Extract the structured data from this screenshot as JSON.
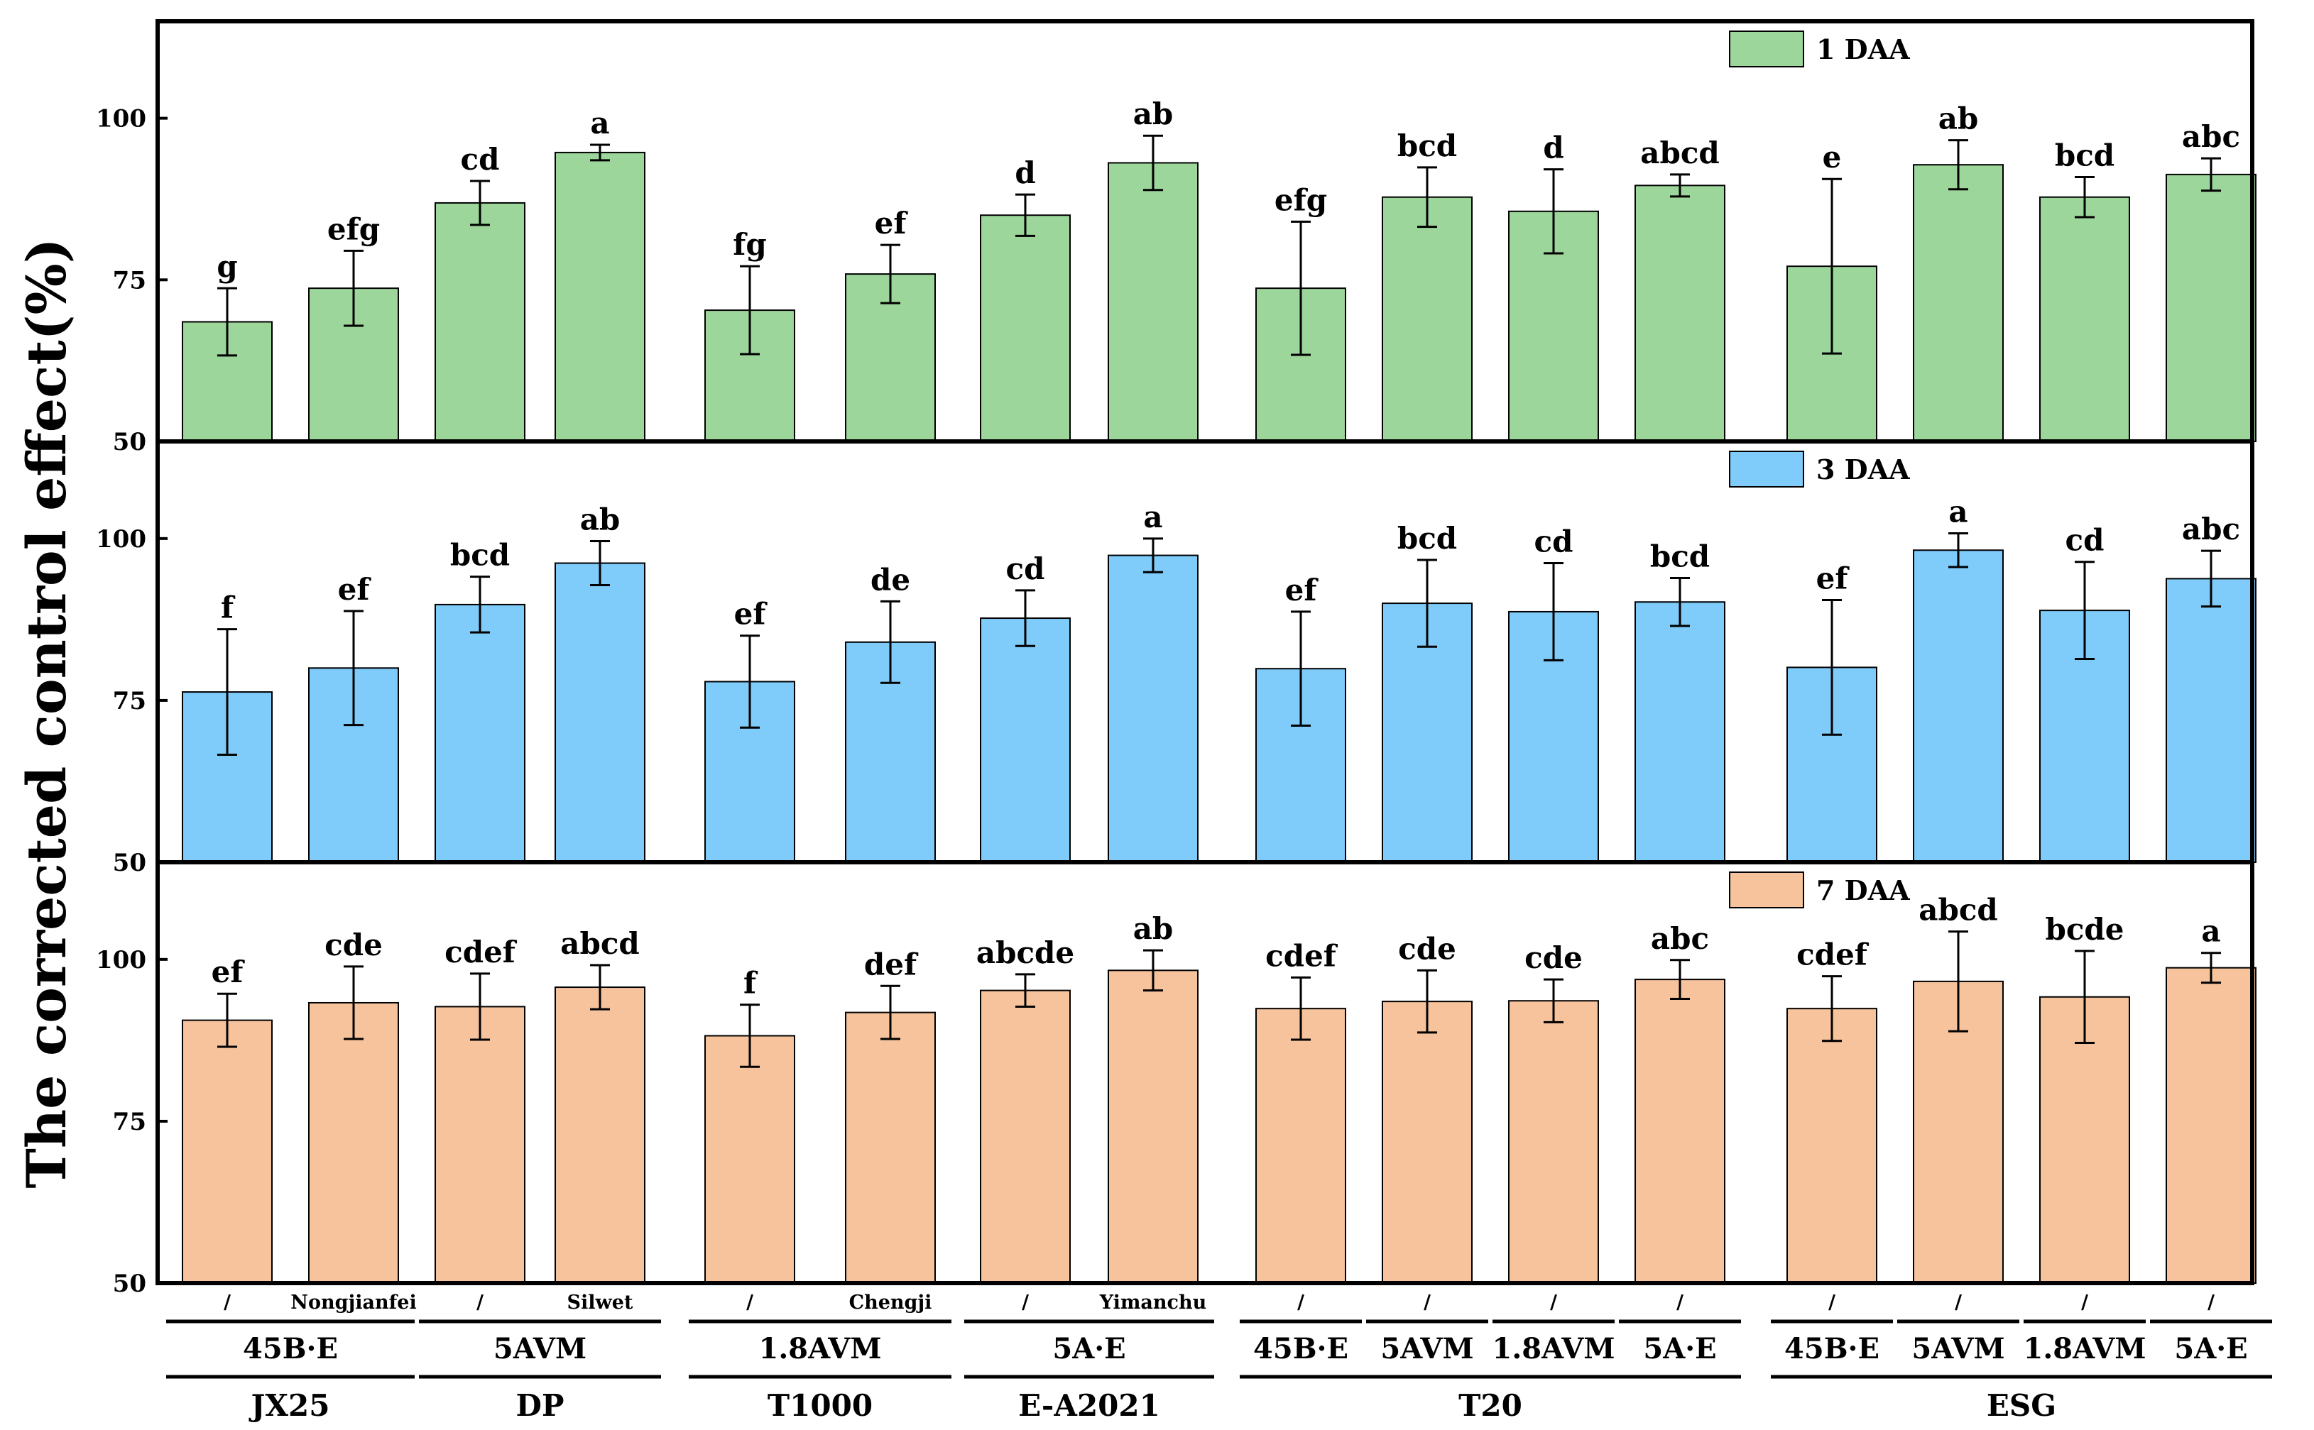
{
  "chart_data": {
    "type": "bar",
    "ylabel": "The corrected control effect(%)",
    "ylim": [
      50,
      115
    ],
    "yticks": [
      "50",
      "75",
      "100"
    ],
    "colors": [
      "#9dd69a",
      "#7fcbfa",
      "#f7c39d"
    ],
    "platforms": [
      "JX25",
      "DP",
      "T1000",
      "E-A2021",
      "T20",
      "ESG"
    ],
    "categories": [
      {
        "platform": "JX25",
        "pesticide": "45B·E",
        "adjuvant": "/"
      },
      {
        "platform": "JX25",
        "pesticide": "45B·E",
        "adjuvant": "Nongjianfei"
      },
      {
        "platform": "DP",
        "pesticide": "5AVM",
        "adjuvant": "/"
      },
      {
        "platform": "DP",
        "pesticide": "5AVM",
        "adjuvant": "Silwet"
      },
      {
        "platform": "T1000",
        "pesticide": "1.8AVM",
        "adjuvant": "/"
      },
      {
        "platform": "T1000",
        "pesticide": "1.8AVM",
        "adjuvant": "Chengji"
      },
      {
        "platform": "E-A2021",
        "pesticide": "5A·E",
        "adjuvant": "/"
      },
      {
        "platform": "E-A2021",
        "pesticide": "5A·E",
        "adjuvant": "Yimanchu"
      },
      {
        "platform": "T20",
        "pesticide": "45B·E",
        "adjuvant": "/"
      },
      {
        "platform": "T20",
        "pesticide": "5AVM",
        "adjuvant": "/"
      },
      {
        "platform": "T20",
        "pesticide": "1.8AVM",
        "adjuvant": "/"
      },
      {
        "platform": "T20",
        "pesticide": "5A·E",
        "adjuvant": "/"
      },
      {
        "platform": "ESG",
        "pesticide": "45B·E",
        "adjuvant": "/"
      },
      {
        "platform": "ESG",
        "pesticide": "5AVM",
        "adjuvant": "/"
      },
      {
        "platform": "ESG",
        "pesticide": "1.8AVM",
        "adjuvant": "/"
      },
      {
        "platform": "ESG",
        "pesticide": "5A·E",
        "adjuvant": "/"
      }
    ],
    "pesticide_groups": [
      {
        "label": "45B·E",
        "from": 0,
        "to": 1
      },
      {
        "label": "5AVM",
        "from": 2,
        "to": 3
      },
      {
        "label": "1.8AVM",
        "from": 4,
        "to": 5
      },
      {
        "label": "5A·E",
        "from": 6,
        "to": 7
      },
      {
        "label": "45B·E",
        "from": 8,
        "to": 8
      },
      {
        "label": "5AVM",
        "from": 9,
        "to": 9
      },
      {
        "label": "1.8AVM",
        "from": 10,
        "to": 10
      },
      {
        "label": "5A·E",
        "from": 11,
        "to": 11
      },
      {
        "label": "45B·E",
        "from": 12,
        "to": 12
      },
      {
        "label": "5AVM",
        "from": 13,
        "to": 13
      },
      {
        "label": "1.8AVM",
        "from": 14,
        "to": 14
      },
      {
        "label": "5A·E",
        "from": 15,
        "to": 15
      }
    ],
    "platform_groups": [
      {
        "label": "JX25",
        "from": 0,
        "to": 1
      },
      {
        "label": "DP",
        "from": 2,
        "to": 3
      },
      {
        "label": "T1000",
        "from": 4,
        "to": 5
      },
      {
        "label": "E-A2021",
        "from": 6,
        "to": 7
      },
      {
        "label": "T20",
        "from": 8,
        "to": 11
      },
      {
        "label": "ESG",
        "from": 12,
        "to": 15
      }
    ],
    "series": [
      {
        "name": "1 DAA",
        "values": [
          68.5,
          73.7,
          86.9,
          94.7,
          70.3,
          75.9,
          85.0,
          93.1,
          73.7,
          87.8,
          85.6,
          89.6,
          77.1,
          92.8,
          87.8,
          91.3
        ],
        "errors": [
          5.2,
          5.8,
          3.4,
          1.2,
          6.8,
          4.5,
          3.2,
          4.2,
          10.3,
          4.6,
          6.5,
          1.7,
          13.5,
          3.8,
          3.1,
          2.5
        ],
        "letters": [
          "g",
          "efg",
          "cd",
          "a",
          "fg",
          "ef",
          "d",
          "ab",
          "efg",
          "bcd",
          "d",
          "abcd",
          "e",
          "ab",
          "bcd",
          "abc"
        ]
      },
      {
        "name": "3 DAA",
        "values": [
          76.3,
          80.0,
          89.8,
          96.2,
          77.9,
          84.0,
          87.7,
          97.4,
          79.9,
          90.0,
          88.7,
          90.2,
          80.1,
          98.2,
          88.9,
          93.8
        ],
        "errors": [
          9.7,
          8.8,
          4.3,
          3.4,
          7.1,
          6.3,
          4.3,
          2.6,
          8.8,
          6.7,
          7.5,
          3.7,
          10.4,
          2.6,
          7.5,
          4.3
        ],
        "letters": [
          "f",
          "ef",
          "bcd",
          "ab",
          "ef",
          "de",
          "cd",
          "a",
          "ef",
          "bcd",
          "cd",
          "bcd",
          "ef",
          "a",
          "cd",
          "abc"
        ]
      },
      {
        "name": "7 DAA",
        "values": [
          90.6,
          93.3,
          92.7,
          95.7,
          88.2,
          91.8,
          95.2,
          98.3,
          92.4,
          93.5,
          93.6,
          96.9,
          92.4,
          96.6,
          94.2,
          98.7
        ],
        "errors": [
          4.1,
          5.6,
          5.1,
          3.4,
          4.8,
          4.1,
          2.5,
          3.1,
          4.8,
          4.8,
          3.3,
          3.0,
          5.0,
          7.7,
          7.1,
          2.3
        ],
        "letters": [
          "ef",
          "cde",
          "cdef",
          "abcd",
          "f",
          "def",
          "abcde",
          "ab",
          "cdef",
          "cde",
          "cde",
          "abc",
          "cdef",
          "abcd",
          "bcde",
          "a"
        ]
      }
    ]
  }
}
